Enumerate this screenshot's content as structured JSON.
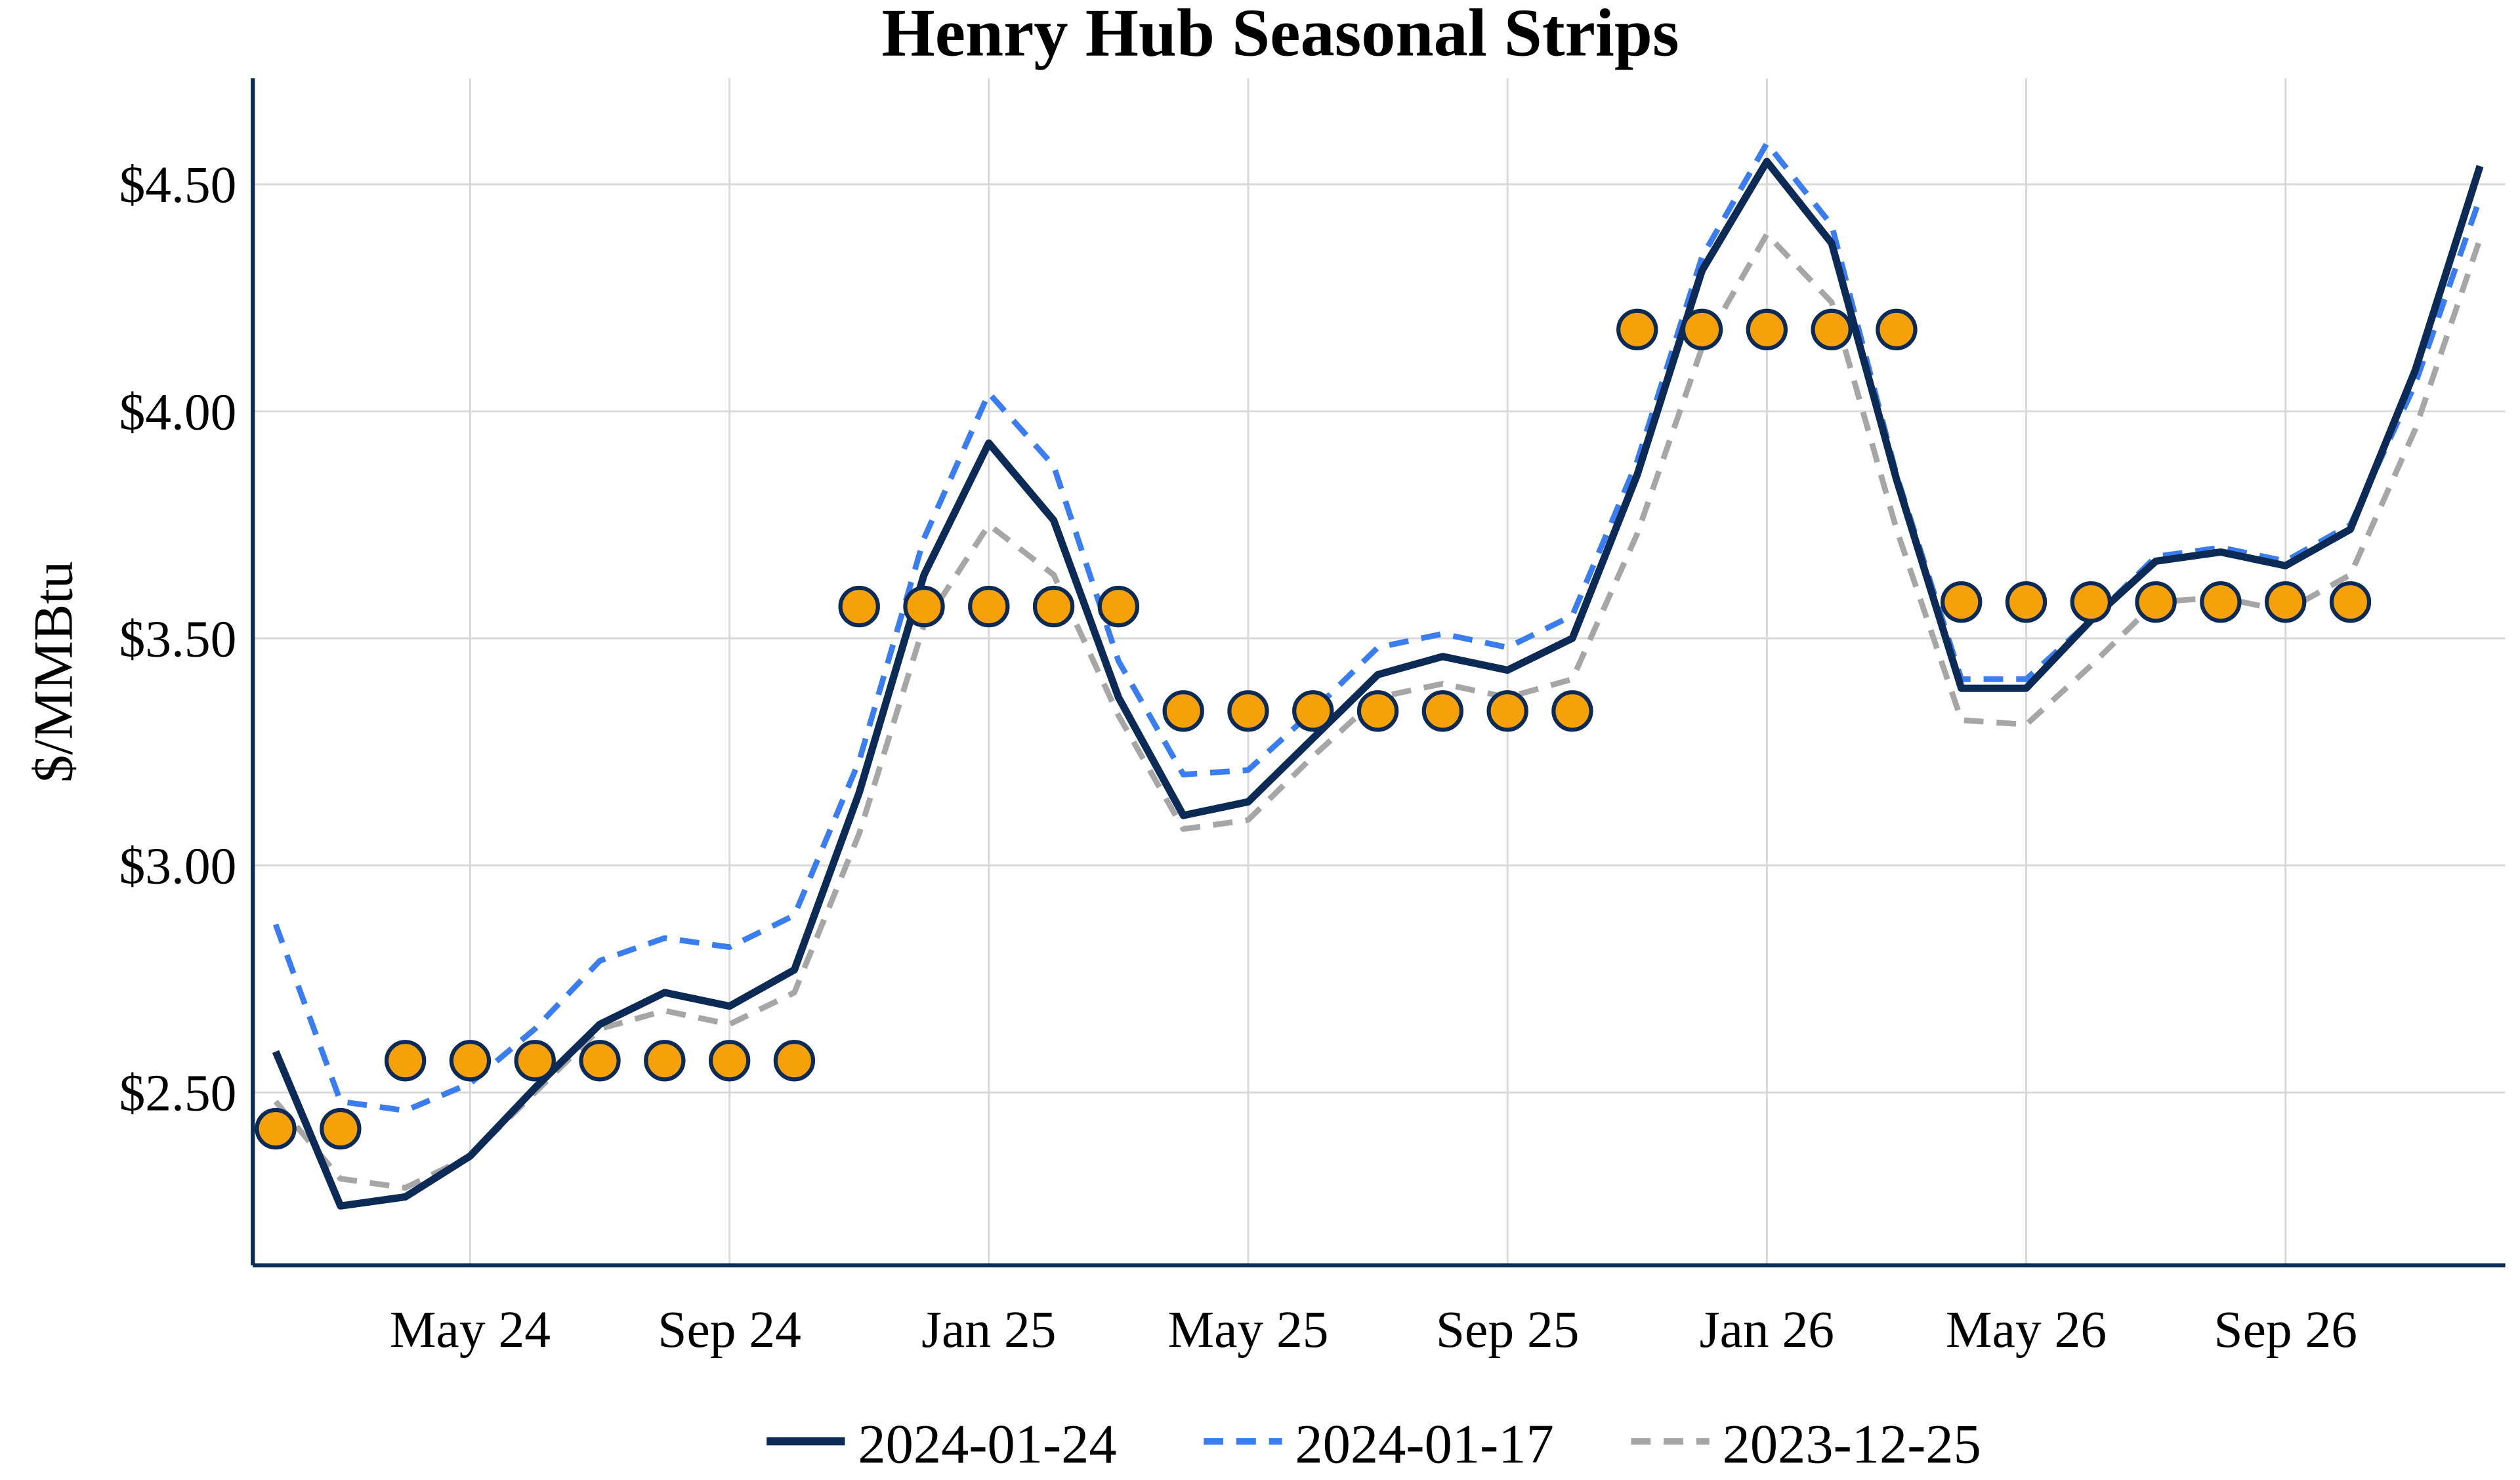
{
  "chart_data": {
    "type": "line",
    "title": "Henry Hub Seasonal Strips",
    "xlabel": "",
    "ylabel": "$/MMBtu",
    "ylim": [
      2.12,
      4.72
    ],
    "yticks": [
      2.5,
      3.0,
      3.5,
      4.0,
      4.5
    ],
    "ytick_labels": [
      "$2.50",
      "$3.00",
      "$3.50",
      "$4.00",
      "$4.50"
    ],
    "xtick_labels": [
      "May 24",
      "Sep 24",
      "Jan 25",
      "May 25",
      "Sep 25",
      "Jan 26",
      "May 26",
      "Sep 26"
    ],
    "xtick_months": [
      "2024-05",
      "2024-09",
      "2025-01",
      "2025-05",
      "2025-09",
      "2026-01",
      "2026-05",
      "2026-09"
    ],
    "grid": true,
    "legend_placement": "bottom",
    "x": [
      "2024-02",
      "2024-03",
      "2024-04",
      "2024-05",
      "2024-06",
      "2024-07",
      "2024-08",
      "2024-09",
      "2024-10",
      "2024-11",
      "2024-12",
      "2025-01",
      "2025-02",
      "2025-03",
      "2025-04",
      "2025-05",
      "2025-06",
      "2025-07",
      "2025-08",
      "2025-09",
      "2025-10",
      "2025-11",
      "2025-12",
      "2026-01",
      "2026-02",
      "2026-03",
      "2026-04",
      "2026-05",
      "2026-06",
      "2026-07",
      "2026-08",
      "2026-09",
      "2026-10",
      "2026-11",
      "2026-12"
    ],
    "series": [
      {
        "name": "2024-01-24",
        "color": "#0b2a55",
        "style": "solid",
        "values": [
          2.59,
          2.25,
          2.27,
          2.36,
          2.51,
          2.65,
          2.72,
          2.69,
          2.77,
          3.16,
          3.64,
          3.93,
          3.76,
          3.37,
          3.11,
          3.14,
          3.28,
          3.42,
          3.46,
          3.43,
          3.5,
          3.86,
          4.31,
          4.55,
          4.37,
          3.85,
          3.39,
          3.39,
          3.54,
          3.67,
          3.69,
          3.66,
          3.74,
          4.09,
          4.54
        ]
      },
      {
        "name": "2024-01-17",
        "color": "#3a7df0",
        "style": "dashed",
        "values": [
          2.87,
          2.48,
          2.46,
          2.52,
          2.64,
          2.79,
          2.84,
          2.82,
          2.89,
          3.23,
          3.72,
          4.04,
          3.88,
          3.45,
          3.2,
          3.21,
          3.34,
          3.48,
          3.51,
          3.48,
          3.55,
          3.89,
          4.34,
          4.59,
          4.41,
          3.86,
          3.41,
          3.41,
          3.54,
          3.68,
          3.7,
          3.67,
          3.75,
          4.06,
          4.47
        ]
      },
      {
        "name": "2023-12-25",
        "color": "#a6a6a6",
        "style": "dashed",
        "values": [
          2.48,
          2.31,
          2.29,
          2.36,
          2.5,
          2.64,
          2.68,
          2.65,
          2.72,
          3.07,
          3.53,
          3.75,
          3.64,
          3.33,
          3.08,
          3.1,
          3.24,
          3.37,
          3.4,
          3.37,
          3.41,
          3.73,
          4.14,
          4.39,
          4.24,
          3.74,
          3.32,
          3.31,
          3.44,
          3.58,
          3.59,
          3.56,
          3.64,
          3.96,
          4.38
        ]
      }
    ],
    "strip_markers": {
      "color": "#f7a10a",
      "edge_color": "#0b2a55",
      "strips": [
        {
          "months": [
            "2024-02",
            "2024-03"
          ],
          "value": 2.42
        },
        {
          "months": [
            "2024-04",
            "2024-05",
            "2024-06",
            "2024-07",
            "2024-08",
            "2024-09",
            "2024-10"
          ],
          "value": 2.57
        },
        {
          "months": [
            "2024-11",
            "2024-12",
            "2025-01",
            "2025-02",
            "2025-03"
          ],
          "value": 3.57
        },
        {
          "months": [
            "2025-04",
            "2025-05",
            "2025-06",
            "2025-07",
            "2025-08",
            "2025-09",
            "2025-10"
          ],
          "value": 3.34
        },
        {
          "months": [
            "2025-11",
            "2025-12",
            "2026-01",
            "2026-02",
            "2026-03"
          ],
          "value": 4.18
        },
        {
          "months": [
            "2026-04",
            "2026-05",
            "2026-06",
            "2026-07",
            "2026-08",
            "2026-09",
            "2026-10"
          ],
          "value": 3.58
        }
      ]
    }
  }
}
